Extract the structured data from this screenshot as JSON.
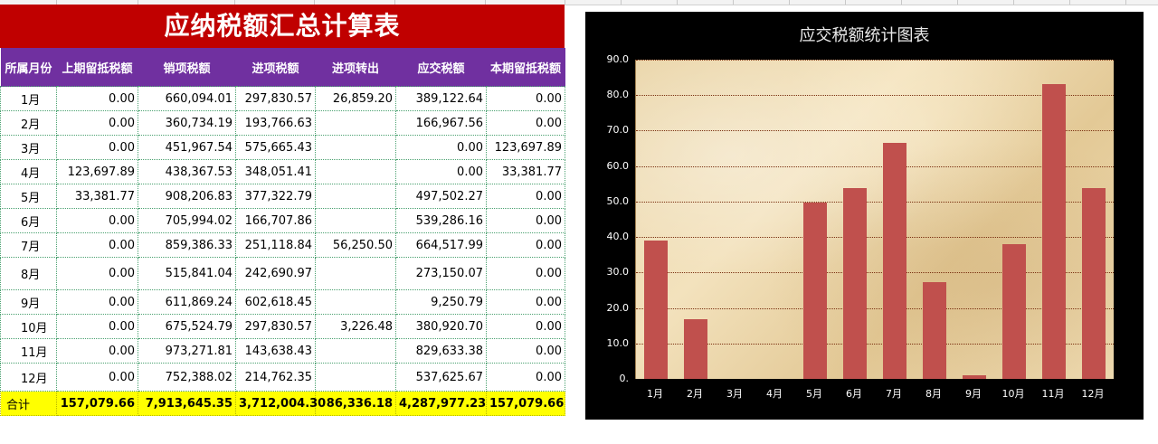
{
  "sheet": {
    "title": "应纳税额汇总计算表",
    "headers": [
      "所属月份",
      "上期留抵税额",
      "销项税额",
      "进项税额",
      "进项转出",
      "应交税额",
      "本期留抵税额"
    ],
    "rows": [
      [
        "1月",
        "0.00",
        "660,094.01",
        "297,830.57",
        "26,859.20",
        "389,122.64",
        "0.00"
      ],
      [
        "2月",
        "0.00",
        "360,734.19",
        "193,766.63",
        "",
        "166,967.56",
        "0.00"
      ],
      [
        "3月",
        "0.00",
        "451,967.54",
        "575,665.43",
        "",
        "0.00",
        "123,697.89"
      ],
      [
        "4月",
        "123,697.89",
        "438,367.53",
        "348,051.41",
        "",
        "0.00",
        "33,381.77"
      ],
      [
        "5月",
        "33,381.77",
        "908,206.83",
        "377,322.79",
        "",
        "497,502.27",
        "0.00"
      ],
      [
        "6月",
        "0.00",
        "705,994.02",
        "166,707.86",
        "",
        "539,286.16",
        "0.00"
      ],
      [
        "7月",
        "0.00",
        "859,386.33",
        "251,118.84",
        "56,250.50",
        "664,517.99",
        "0.00"
      ],
      [
        "8月",
        "0.00",
        "515,841.04",
        "242,690.97",
        "",
        "273,150.07",
        "0.00"
      ],
      [
        "9月",
        "0.00",
        "611,869.24",
        "602,618.45",
        "",
        "9,250.79",
        "0.00"
      ],
      [
        "10月",
        "0.00",
        "675,524.79",
        "297,830.57",
        "3,226.48",
        "380,920.70",
        "0.00"
      ],
      [
        "11月",
        "0.00",
        "973,271.81",
        "143,638.43",
        "",
        "829,633.38",
        "0.00"
      ],
      [
        "12月",
        "0.00",
        "752,388.02",
        "214,762.35",
        "",
        "537,625.67",
        "0.00"
      ]
    ],
    "total": [
      "合计",
      "157,079.66",
      "7,913,645.35",
      "3,712,004.30",
      "86,336.18",
      "4,287,977.23",
      "157,079.66"
    ]
  },
  "chart_data": {
    "type": "bar",
    "title": "应交税额统计图表",
    "categories": [
      "1月",
      "2月",
      "3月",
      "4月",
      "5月",
      "6月",
      "7月",
      "8月",
      "9月",
      "10月",
      "11月",
      "12月"
    ],
    "values": [
      38.9,
      16.7,
      0,
      0,
      49.8,
      53.9,
      66.5,
      27.3,
      0.9,
      38.1,
      83.0,
      53.8
    ],
    "ylim": [
      0,
      90
    ],
    "yticks": [
      "0.",
      "10.0",
      "20.0",
      "30.0",
      "40.0",
      "50.0",
      "60.0",
      "70.0",
      "80.0",
      "90.0"
    ],
    "grid": true,
    "colors": {
      "bar": "#c0504d",
      "background": "#000000",
      "plot_bg": "#ead5a8"
    }
  }
}
